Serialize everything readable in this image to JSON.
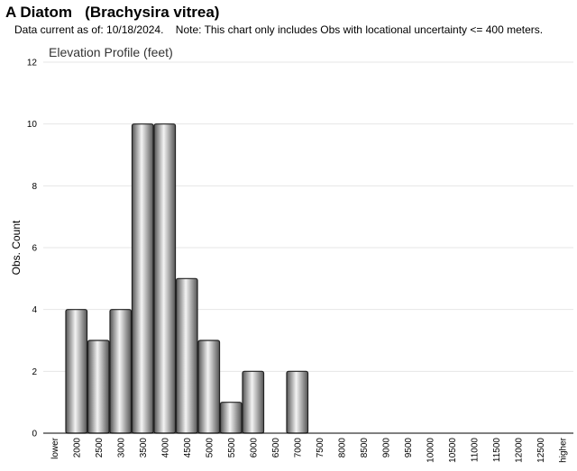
{
  "header": {
    "title": "A Diatom   (Brachysira vitrea)",
    "subtitle": "Data current as of: 10/18/2024.    Note: This chart only includes Obs with locational uncertainty <= 400 meters."
  },
  "chart_data": {
    "type": "bar",
    "title": "Elevation Profile (feet)",
    "xlabel": "",
    "ylabel": "Obs. Count",
    "ylim": [
      0,
      12
    ],
    "yticks": [
      0,
      2,
      4,
      6,
      8,
      10,
      12
    ],
    "grid": true,
    "categories": [
      "lower",
      "2000",
      "2500",
      "3000",
      "3500",
      "4000",
      "4500",
      "5000",
      "5500",
      "6000",
      "6500",
      "7000",
      "7500",
      "8000",
      "8500",
      "9000",
      "9500",
      "10000",
      "10500",
      "11000",
      "11500",
      "12000",
      "12500",
      "higher"
    ],
    "values": [
      0,
      4,
      3,
      4,
      10,
      10,
      5,
      3,
      1,
      2,
      0,
      2,
      0,
      0,
      0,
      0,
      0,
      0,
      0,
      0,
      0,
      0,
      0,
      0
    ],
    "colors": {
      "bar_dark": "#555555",
      "bar_light": "#f4f4f4",
      "grid": "#e6e6e6"
    }
  }
}
